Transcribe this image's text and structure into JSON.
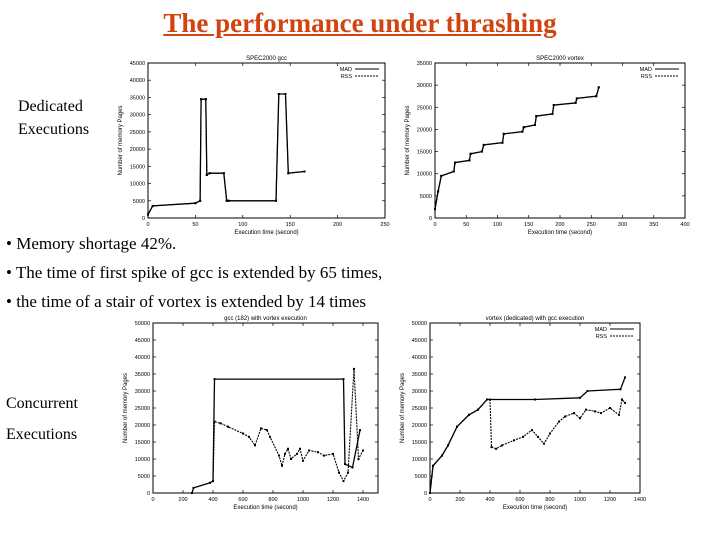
{
  "slide": {
    "title": "The performance under thrashing ",
    "label_top": [
      "Dedicated",
      "Executions"
    ],
    "label_bottom": [
      "Concurrent",
      "Executions"
    ],
    "bullets": [
      "• Memory shortage 42%.",
      "• The time of first spike of gcc is extended by 65 times,",
      "• the time of a stair of vortex is extended by 14 times"
    ]
  },
  "chart_data": [
    {
      "type": "line",
      "title": "SPEC2000 gcc",
      "xlabel": "Execution time (second)",
      "ylabel": "Number of memory Pages",
      "xlim": [
        0,
        250
      ],
      "ylim": [
        0,
        45000
      ],
      "xticks": [
        0,
        50,
        100,
        150,
        200,
        250
      ],
      "yticks": [
        0,
        5000,
        10000,
        15000,
        20000,
        25000,
        30000,
        35000,
        40000,
        45000
      ],
      "legend": "top-right",
      "series": [
        {
          "name": "MAD",
          "style": "solid",
          "points": [
            [
              0,
              1000
            ],
            [
              5,
              3500
            ],
            [
              50,
              4300
            ],
            [
              55,
              5000
            ],
            [
              56,
              34500
            ],
            [
              61,
              34500
            ],
            [
              62,
              12500
            ],
            [
              65,
              13000
            ],
            [
              80,
              13000
            ],
            [
              83,
              5000
            ],
            [
              85,
              5000
            ],
            [
              135,
              5000
            ],
            [
              138,
              36000
            ],
            [
              145,
              36000
            ],
            [
              148,
              13000
            ],
            [
              165,
              13500
            ]
          ]
        },
        {
          "name": "RSS",
          "style": "dashed",
          "points": [
            [
              0,
              1000
            ],
            [
              5,
              3500
            ],
            [
              50,
              4300
            ],
            [
              55,
              5000
            ],
            [
              56,
              34500
            ],
            [
              61,
              34500
            ],
            [
              62,
              12500
            ],
            [
              65,
              13000
            ],
            [
              80,
              13000
            ],
            [
              83,
              5000
            ],
            [
              85,
              5000
            ],
            [
              135,
              5000
            ],
            [
              138,
              36000
            ],
            [
              145,
              36000
            ],
            [
              148,
              13000
            ],
            [
              165,
              13500
            ]
          ]
        }
      ]
    },
    {
      "type": "line",
      "title": "SPEC2000 vortex",
      "xlabel": "Execution time (second)",
      "ylabel": "Number of memory Pages",
      "xlim": [
        0,
        400
      ],
      "ylim": [
        0,
        35000
      ],
      "xticks": [
        0,
        50,
        100,
        150,
        200,
        250,
        300,
        350,
        400
      ],
      "yticks": [
        0,
        5000,
        10000,
        15000,
        20000,
        25000,
        30000,
        35000
      ],
      "legend": "top-right",
      "series": [
        {
          "name": "MAD",
          "style": "solid",
          "points": [
            [
              0,
              2000
            ],
            [
              5,
              6000
            ],
            [
              10,
              9500
            ],
            [
              30,
              10500
            ],
            [
              32,
              12500
            ],
            [
              55,
              13000
            ],
            [
              57,
              14500
            ],
            [
              75,
              15000
            ],
            [
              78,
              16500
            ],
            [
              108,
              17000
            ],
            [
              110,
              19000
            ],
            [
              140,
              19500
            ],
            [
              142,
              20500
            ],
            [
              160,
              21000
            ],
            [
              162,
              23000
            ],
            [
              188,
              23500
            ],
            [
              190,
              25500
            ],
            [
              225,
              26000
            ],
            [
              227,
              27000
            ],
            [
              258,
              27500
            ],
            [
              262,
              29500
            ]
          ]
        },
        {
          "name": "RSS",
          "style": "dashed",
          "points": [
            [
              0,
              2000
            ],
            [
              5,
              6000
            ],
            [
              10,
              9500
            ],
            [
              30,
              10500
            ],
            [
              32,
              12500
            ],
            [
              55,
              13000
            ],
            [
              57,
              14500
            ],
            [
              75,
              15000
            ],
            [
              78,
              16500
            ],
            [
              108,
              17000
            ],
            [
              110,
              19000
            ],
            [
              140,
              19500
            ],
            [
              142,
              20500
            ],
            [
              160,
              21000
            ],
            [
              162,
              23000
            ],
            [
              188,
              23500
            ],
            [
              190,
              25500
            ],
            [
              225,
              26000
            ],
            [
              227,
              27000
            ],
            [
              258,
              27500
            ],
            [
              262,
              29500
            ]
          ]
        }
      ]
    },
    {
      "type": "line",
      "title": "gcc (182) with vortex execution",
      "xlabel": "Execution time (second)",
      "ylabel": "Number of memory Pages",
      "xlim": [
        0,
        1500
      ],
      "ylim": [
        0,
        50000
      ],
      "xticks": [
        0,
        200,
        400,
        600,
        800,
        1000,
        1200,
        1400
      ],
      "yticks": [
        0,
        5000,
        10000,
        15000,
        20000,
        25000,
        30000,
        35000,
        40000,
        45000,
        50000
      ],
      "legend": "none",
      "series": [
        {
          "name": "MAD",
          "style": "solid",
          "points": [
            [
              260,
              0
            ],
            [
              270,
              1500
            ],
            [
              380,
              3000
            ],
            [
              400,
              3500
            ],
            [
              410,
              33500
            ],
            [
              1270,
              33500
            ],
            [
              1280,
              8500
            ],
            [
              1330,
              7500
            ],
            [
              1380,
              18500
            ]
          ]
        },
        {
          "name": "RSS",
          "style": "dashed",
          "points": [
            [
              400,
              3500
            ],
            [
              410,
              21000
            ],
            [
              450,
              20500
            ],
            [
              500,
              19500
            ],
            [
              600,
              17500
            ],
            [
              640,
              16500
            ],
            [
              680,
              14000
            ],
            [
              720,
              19000
            ],
            [
              760,
              18500
            ],
            [
              780,
              16500
            ],
            [
              840,
              11000
            ],
            [
              860,
              8000
            ],
            [
              880,
              11500
            ],
            [
              900,
              13000
            ],
            [
              920,
              10000
            ],
            [
              960,
              11500
            ],
            [
              980,
              13000
            ],
            [
              1000,
              9500
            ],
            [
              1040,
              12500
            ],
            [
              1100,
              12000
            ],
            [
              1140,
              11000
            ],
            [
              1200,
              11500
            ],
            [
              1240,
              6000
            ],
            [
              1270,
              3500
            ],
            [
              1300,
              6000
            ],
            [
              1340,
              36500
            ],
            [
              1370,
              10000
            ],
            [
              1400,
              12500
            ]
          ]
        }
      ]
    },
    {
      "type": "line",
      "title": "vortex (dedicated) with gcc execution",
      "xlabel": "Execution time (second)",
      "ylabel": "Number of memory Pages",
      "xlim": [
        0,
        1400
      ],
      "ylim": [
        0,
        50000
      ],
      "xticks": [
        0,
        200,
        400,
        600,
        800,
        1000,
        1200,
        1400
      ],
      "yticks": [
        0,
        5000,
        10000,
        15000,
        20000,
        25000,
        30000,
        35000,
        40000,
        45000,
        50000
      ],
      "legend": "top-right",
      "series": [
        {
          "name": "MAD",
          "style": "solid",
          "points": [
            [
              0,
              0
            ],
            [
              20,
              8000
            ],
            [
              80,
              11000
            ],
            [
              120,
              14000
            ],
            [
              180,
              19500
            ],
            [
              260,
              23000
            ],
            [
              320,
              24500
            ],
            [
              380,
              27500
            ],
            [
              700,
              27500
            ],
            [
              1000,
              28000
            ],
            [
              1050,
              30000
            ],
            [
              1270,
              30500
            ],
            [
              1300,
              34000
            ]
          ]
        },
        {
          "name": "RSS",
          "style": "dashed",
          "points": [
            [
              0,
              0
            ],
            [
              20,
              8000
            ],
            [
              80,
              11000
            ],
            [
              120,
              14000
            ],
            [
              180,
              19500
            ],
            [
              260,
              23000
            ],
            [
              320,
              24500
            ],
            [
              380,
              27500
            ],
            [
              400,
              27500
            ],
            [
              410,
              13500
            ],
            [
              440,
              13000
            ],
            [
              480,
              14000
            ],
            [
              560,
              15500
            ],
            [
              620,
              16500
            ],
            [
              680,
              18500
            ],
            [
              720,
              16500
            ],
            [
              760,
              14500
            ],
            [
              800,
              17500
            ],
            [
              860,
              21000
            ],
            [
              900,
              22500
            ],
            [
              960,
              23500
            ],
            [
              1000,
              22000
            ],
            [
              1040,
              24500
            ],
            [
              1100,
              24000
            ],
            [
              1140,
              23500
            ],
            [
              1200,
              25000
            ],
            [
              1260,
              23000
            ],
            [
              1280,
              27500
            ],
            [
              1300,
              26500
            ]
          ]
        }
      ]
    }
  ]
}
